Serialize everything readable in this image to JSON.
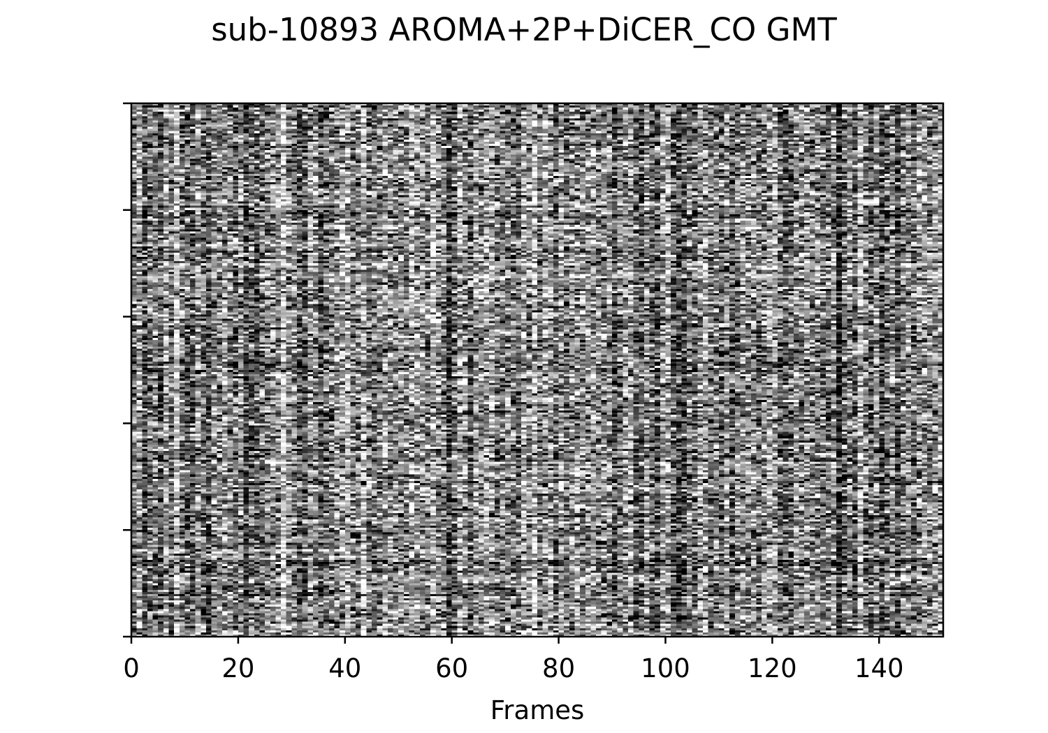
{
  "chart_data": {
    "type": "heatmap",
    "title": "sub-10893 AROMA+2P+DiCER_CO GMT",
    "xlabel": "Frames",
    "ylabel": "",
    "xlim": [
      0,
      152
    ],
    "x_ticks": [
      0,
      20,
      40,
      60,
      80,
      100,
      120,
      140
    ],
    "x_tick_labels": [
      "0",
      "20",
      "40",
      "60",
      "80",
      "100",
      "120",
      "140"
    ],
    "y_tick_count": 6,
    "y_tick_labels_visible": false,
    "colormap": "grayscale",
    "grid": false,
    "legend": "none",
    "num_frames": 152,
    "num_rows": 250,
    "content": "noise-like grayscale intensity carpet with no clear structure"
  },
  "colors": {
    "background": "#ffffff",
    "axis": "#000000",
    "low_value": "#000000",
    "high_value": "#ffffff"
  }
}
